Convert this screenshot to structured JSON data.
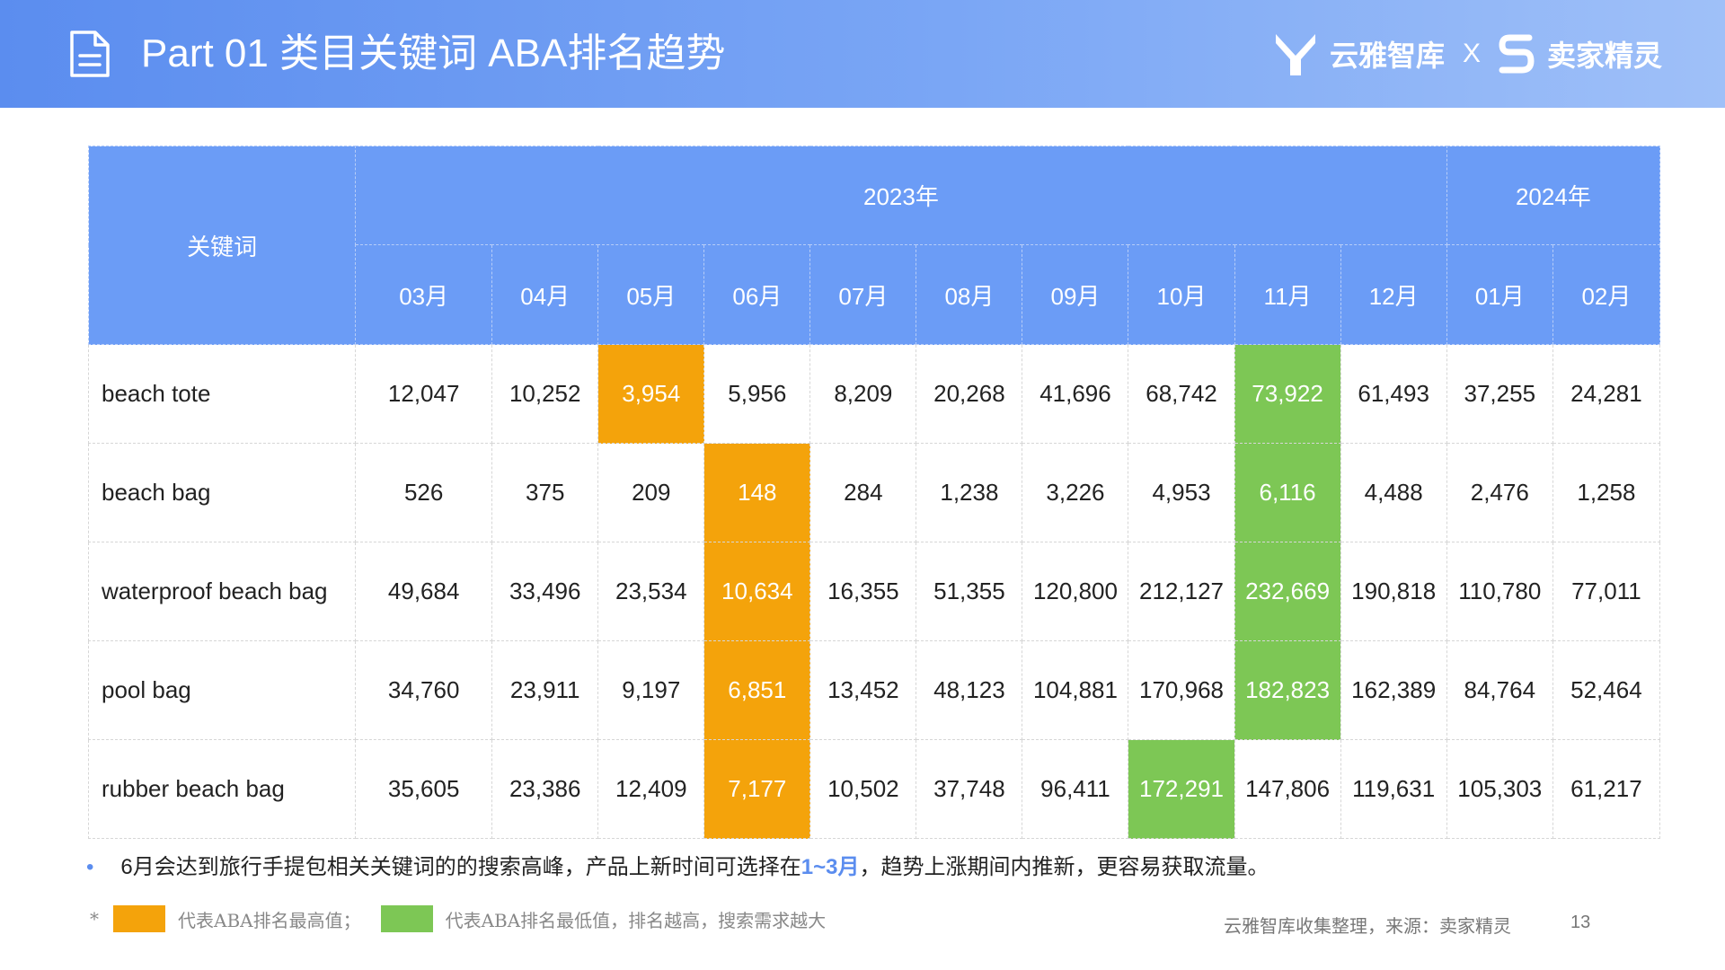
{
  "header": {
    "title": "Part 01 类目关键词 ABA排名趋势",
    "brand_left": "云雅智库",
    "brand_sep": "X",
    "brand_right": "卖家精灵"
  },
  "table": {
    "keyword_header": "关键词",
    "years": [
      {
        "label": "2023年",
        "span": 10
      },
      {
        "label": "2024年",
        "span": 2
      }
    ],
    "months": [
      "03月",
      "04月",
      "05月",
      "06月",
      "07月",
      "08月",
      "09月",
      "10月",
      "11月",
      "12月",
      "01月",
      "02月"
    ],
    "rows": [
      {
        "keyword": "beach tote",
        "values": [
          "12,047",
          "10,252",
          "3,954",
          "5,956",
          "8,209",
          "20,268",
          "41,696",
          "68,742",
          "73,922",
          "61,493",
          "37,255",
          "24,281"
        ],
        "highest_index": 2,
        "lowest_index": 8
      },
      {
        "keyword": "beach bag",
        "values": [
          "526",
          "375",
          "209",
          "148",
          "284",
          "1,238",
          "3,226",
          "4,953",
          "6,116",
          "4,488",
          "2,476",
          "1,258"
        ],
        "highest_index": 3,
        "lowest_index": 8
      },
      {
        "keyword": "waterproof beach bag",
        "values": [
          "49,684",
          "33,496",
          "23,534",
          "10,634",
          "16,355",
          "51,355",
          "120,800",
          "212,127",
          "232,669",
          "190,818",
          "110,780",
          "77,011"
        ],
        "highest_index": 3,
        "lowest_index": 8
      },
      {
        "keyword": "pool bag",
        "values": [
          "34,760",
          "23,911",
          "9,197",
          "6,851",
          "13,452",
          "48,123",
          "104,881",
          "170,968",
          "182,823",
          "162,389",
          "84,764",
          "52,464"
        ],
        "highest_index": 3,
        "lowest_index": 8
      },
      {
        "keyword": "rubber beach bag",
        "values": [
          "35,605",
          "23,386",
          "12,409",
          "7,177",
          "10,502",
          "37,748",
          "96,411",
          "172,291",
          "147,806",
          "119,631",
          "105,303",
          "61,217"
        ],
        "highest_index": 3,
        "lowest_index": 7
      }
    ]
  },
  "note": {
    "bullet": "•",
    "before": "6月会达到旅行手提包相关关键词的的搜索高峰，产品上新时间可选择在",
    "highlight": "1~3月",
    "after": "，趋势上涨期间内推新，更容易获取流量。"
  },
  "legend": {
    "star": "*",
    "highest_label": "代表ABA排名最高值；",
    "lowest_label": "代表ABA排名最低值，排名越高，搜索需求越大"
  },
  "footer": {
    "source": "云雅智库收集整理，来源：卖家精灵",
    "page_number": "13"
  },
  "colors": {
    "header_blue": "#6b9cf6",
    "highest_orange": "#f4a30b",
    "lowest_green": "#7dc755",
    "accent_blue": "#5b8def"
  }
}
